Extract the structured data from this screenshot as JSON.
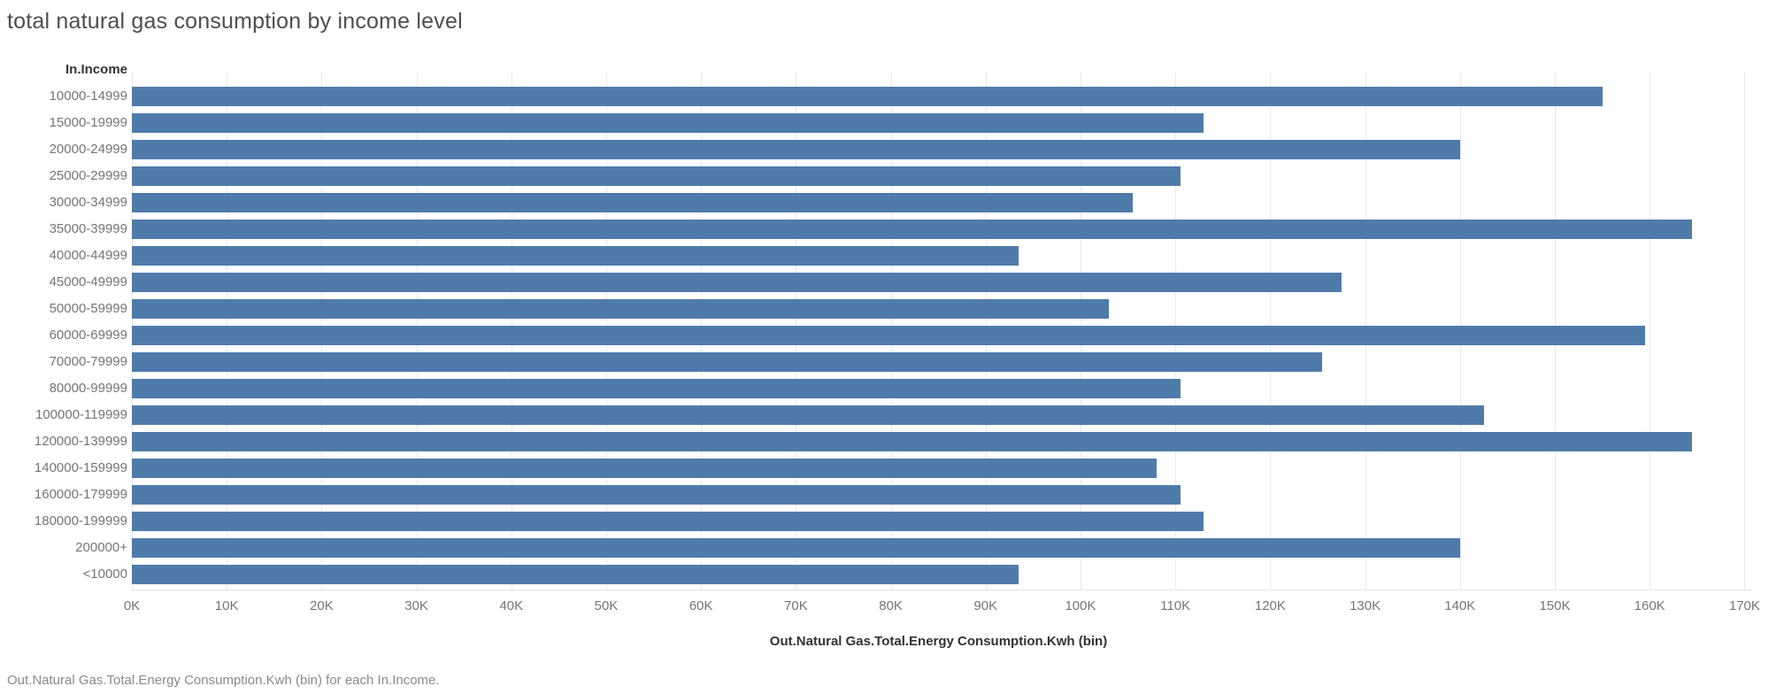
{
  "title": "total natural gas consumption by income level",
  "y_axis_header": "In.Income",
  "x_axis_title": "Out.Natural Gas.Total.Energy Consumption.Kwh (bin)",
  "caption": "Out.Natural Gas.Total.Energy Consumption.Kwh (bin) for each In.Income.",
  "colors": {
    "bar": "#4f7bab",
    "gridline": "#e9e9e9",
    "axis_line": "#e3e3e3",
    "title_text": "#4e4e4e",
    "category_text": "#757575",
    "header_text": "#333333",
    "caption_text": "#8a8a8a"
  },
  "chart_data": {
    "type": "bar",
    "orientation": "horizontal",
    "title": "total natural gas consumption by income level",
    "xlabel": "Out.Natural Gas.Total.Energy Consumption.Kwh (bin)",
    "ylabel": "In.Income",
    "categories": [
      "10000-14999",
      "15000-19999",
      "20000-24999",
      "25000-29999",
      "30000-34999",
      "35000-39999",
      "40000-44999",
      "45000-49999",
      "50000-59999",
      "60000-69999",
      "70000-79999",
      "80000-99999",
      "100000-119999",
      "120000-139999",
      "140000-159999",
      "160000-179999",
      "180000-199999",
      "200000+",
      "<10000"
    ],
    "values": [
      155000,
      113000,
      140000,
      110500,
      105500,
      164500,
      93500,
      127500,
      103000,
      159500,
      125500,
      110500,
      142500,
      164500,
      108000,
      110500,
      113000,
      140000,
      93500
    ],
    "x_tick_labels": [
      "0K",
      "10K",
      "20K",
      "30K",
      "40K",
      "50K",
      "60K",
      "70K",
      "80K",
      "90K",
      "100K",
      "110K",
      "120K",
      "130K",
      "140K",
      "150K",
      "160K",
      "170K"
    ],
    "xlim": [
      0,
      170000
    ],
    "x_tick_step": 10000,
    "grid": "vertical",
    "legend": false
  }
}
